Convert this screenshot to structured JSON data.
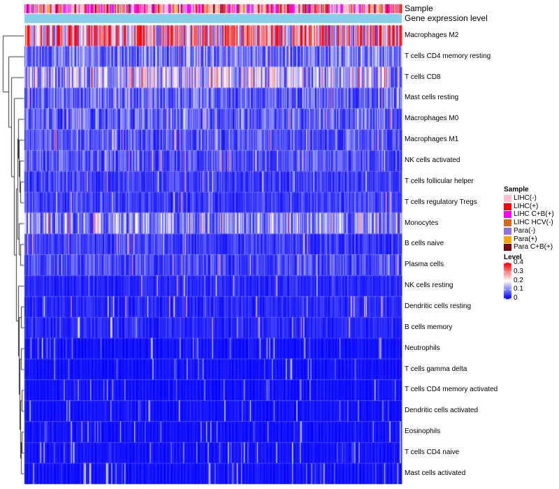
{
  "chart_data": {
    "type": "heatmap",
    "annotation_rows": [
      "Sample",
      "Gene expression level"
    ],
    "rows": [
      "Macrophages M2",
      "T cells CD4 memory resting",
      "T cells CD8",
      "Mast cells resting",
      "Macrophages M0",
      "Macrophages M1",
      "NK cells activated",
      "T cells follicular helper",
      "T cells regulatory  Tregs",
      "Monocytes",
      "B cells naive",
      "Plasma cells",
      "NK cells resting",
      "Dendritic cells resting",
      "B cells memory",
      "Neutrophils",
      "T cells gamma delta",
      "T cells CD4 memory activated",
      "Dendritic cells activated",
      "Eosinophils",
      "T cells CD4 naive",
      "Mast cells activated"
    ],
    "row_mean_levels": [
      0.3,
      0.1,
      0.16,
      0.08,
      0.08,
      0.07,
      0.07,
      0.05,
      0.05,
      0.12,
      0.05,
      0.06,
      0.03,
      0.03,
      0.03,
      0.02,
      0.02,
      0.015,
      0.015,
      0.01,
      0.01,
      0.01
    ],
    "n_samples": 430,
    "sample_legend": {
      "title": "Sample",
      "items": [
        {
          "label": "LIHC(-)",
          "color": "#ffc0cb"
        },
        {
          "label": "LIHC(+)",
          "color": "#ff0000"
        },
        {
          "label": "LIHC C+B(+)",
          "color": "#ff00ff"
        },
        {
          "label": "LIHC HCV(-)",
          "color": "#d2691e"
        },
        {
          "label": "Para(-)",
          "color": "#9370db"
        },
        {
          "label": "Para(+)",
          "color": "#ffa500"
        },
        {
          "label": "Para C+B(+)",
          "color": "#800000"
        }
      ]
    },
    "sample_mix_weights": [
      0.38,
      0.07,
      0.25,
      0.03,
      0.05,
      0.06,
      0.06
    ],
    "level_legend": {
      "title": "Level",
      "ticks": [
        "0.4",
        "0.3",
        "0.2",
        "0.1",
        "0"
      ],
      "tick_values": [
        0.4,
        0.3,
        0.2,
        0.1,
        0
      ],
      "range": [
        0,
        0.4
      ],
      "colors": {
        "low": "#0000ff",
        "mid": "#ffffff",
        "high": "#ff0000"
      }
    },
    "gene_expression_color": "#87ceeb"
  }
}
